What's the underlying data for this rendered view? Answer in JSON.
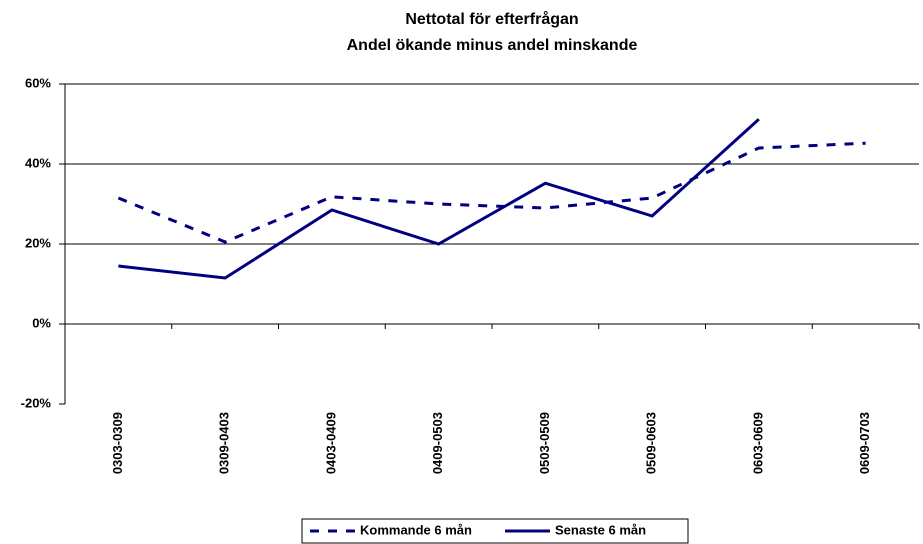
{
  "chart_data": {
    "type": "line",
    "title": "Nettotal för efterfrågan",
    "subtitle": "Andel ökande minus andel minskande",
    "categories": [
      "0303-0309",
      "0309-0403",
      "0403-0409",
      "0409-0503",
      "0503-0509",
      "0509-0603",
      "0603-0609",
      "0609-0703"
    ],
    "series": [
      {
        "name": "Kommande 6 mån",
        "color": "#000080",
        "style": "dashed",
        "values": [
          31.5,
          20.5,
          31.8,
          30,
          29,
          31.5,
          44,
          45.2
        ]
      },
      {
        "name": "Senaste 6 mån",
        "color": "#000080",
        "style": "solid",
        "values": [
          14.5,
          11.5,
          28.5,
          20,
          35.2,
          27,
          51.2,
          null
        ]
      }
    ],
    "ylim": [
      -20,
      60
    ],
    "yticks": [
      {
        "value": -20,
        "label": "-20%"
      },
      {
        "value": 0,
        "label": "0%"
      },
      {
        "value": 20,
        "label": "20%"
      },
      {
        "value": 40,
        "label": "40%"
      },
      {
        "value": 60,
        "label": "60%"
      }
    ],
    "grid": true,
    "legend": "bottom"
  }
}
